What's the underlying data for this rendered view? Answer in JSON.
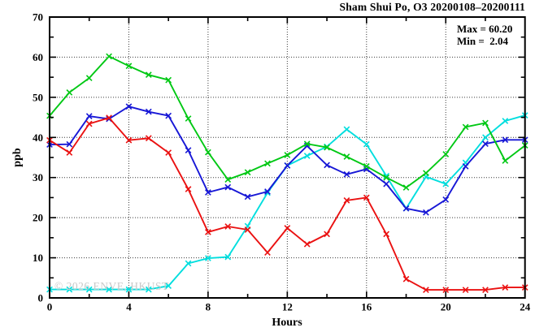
{
  "title": "Sham Shui Po, O3 20200108–20200111",
  "annotation": {
    "max_label": "Max = 60.20",
    "min_label": "Min =  2.04"
  },
  "watermark": "© 2026 ENVE, HKUST",
  "axis": {
    "x_label": "Hours",
    "y_label": "ppb"
  },
  "chart_data": {
    "type": "line",
    "title": "Sham Shui Po, O3 20200108–20200111",
    "xlabel": "Hours",
    "ylabel": "ppb",
    "xlim": [
      0,
      24
    ],
    "ylim": [
      0,
      70
    ],
    "x_major_ticks": [
      0,
      4,
      8,
      12,
      16,
      20,
      24
    ],
    "x_minor_step": 2,
    "y_major_ticks": [
      0,
      10,
      20,
      30,
      40,
      50,
      60,
      70
    ],
    "y_minor_step": 5,
    "grid": "dotted gridlines at x majors and y majors inside frame",
    "legend_position": "none",
    "marker": "x",
    "x": [
      0,
      1,
      2,
      3,
      4,
      5,
      6,
      7,
      8,
      9,
      10,
      11,
      12,
      13,
      14,
      15,
      16,
      17,
      18,
      19,
      20,
      21,
      22,
      23,
      24
    ],
    "series": [
      {
        "name": "day-cyan",
        "color": "#00dede",
        "values": [
          2.1,
          2.1,
          2.1,
          2.1,
          2.1,
          2.1,
          3.0,
          8.6,
          9.9,
          10.2,
          17.9,
          26.2,
          33.0,
          35.4,
          37.7,
          42.0,
          38.3,
          30.4,
          22.3,
          30.2,
          28.4,
          33.7,
          40.0,
          44.1,
          45.5
        ]
      },
      {
        "name": "day-blue",
        "color": "#1717d6",
        "values": [
          38.2,
          38.3,
          45.3,
          44.6,
          47.7,
          46.4,
          45.4,
          36.8,
          26.3,
          27.6,
          25.2,
          26.5,
          33.0,
          37.9,
          33.1,
          30.8,
          32.1,
          28.4,
          22.3,
          21.3,
          24.5,
          32.8,
          38.4,
          39.4,
          39.4
        ]
      },
      {
        "name": "day-green",
        "color": "#00c814",
        "values": [
          45.4,
          51.2,
          54.8,
          60.2,
          57.8,
          55.6,
          54.3,
          44.7,
          36.3,
          29.5,
          31.3,
          33.5,
          35.6,
          38.4,
          37.5,
          35.2,
          32.8,
          30.0,
          27.5,
          31.1,
          35.8,
          42.6,
          43.6,
          34.2,
          38.0
        ]
      },
      {
        "name": "day-red",
        "color": "#ea1111",
        "values": [
          39.3,
          36.2,
          43.4,
          44.9,
          39.3,
          39.8,
          36.2,
          27.1,
          16.4,
          17.8,
          17.0,
          11.3,
          17.4,
          13.4,
          15.9,
          24.3,
          25.0,
          15.9,
          4.7,
          2.0,
          2.0,
          2.0,
          2.0,
          2.6,
          2.6
        ]
      }
    ],
    "stats": {
      "max": 60.2,
      "min": 2.04
    }
  }
}
